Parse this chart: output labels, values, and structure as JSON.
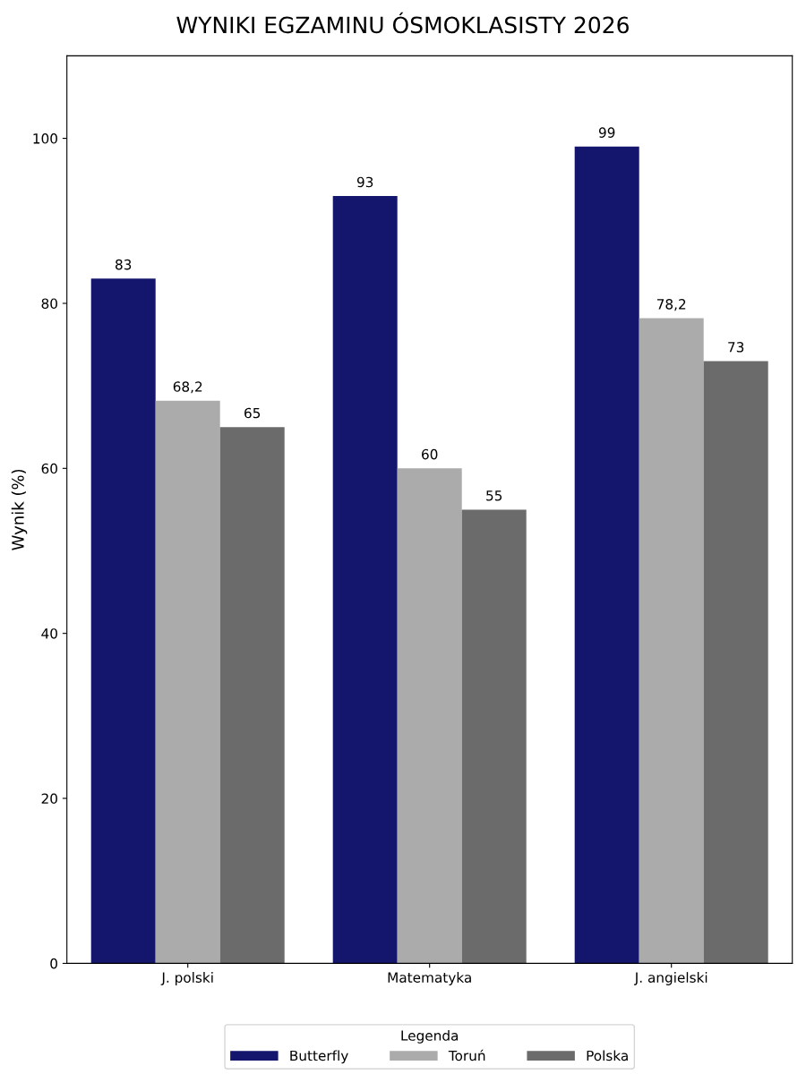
{
  "chart_data": {
    "type": "bar",
    "title": "WYNIKI EGZAMINU ÓSMOKLASISTY 2026",
    "ylabel": "Wynik (%)",
    "legend_title": "Legenda",
    "categories": [
      "J. polski",
      "Matematyka",
      "J. angielski"
    ],
    "series": [
      {
        "name": "Butterfly",
        "color": "#14166e",
        "values": [
          83,
          93,
          99
        ],
        "value_labels": [
          "83",
          "93",
          "99"
        ]
      },
      {
        "name": "Toruń",
        "color": "#ababab",
        "values": [
          68.2,
          60,
          78.2
        ],
        "value_labels": [
          "68,2",
          "60",
          "78,2"
        ]
      },
      {
        "name": "Polska",
        "color": "#6b6b6b",
        "values": [
          65,
          55,
          73
        ],
        "value_labels": [
          "65",
          "55",
          "73"
        ]
      }
    ],
    "ylim": [
      0,
      110
    ],
    "yticks": [
      0,
      20,
      40,
      60,
      80,
      100
    ],
    "grid": false,
    "legend": "bottom"
  }
}
